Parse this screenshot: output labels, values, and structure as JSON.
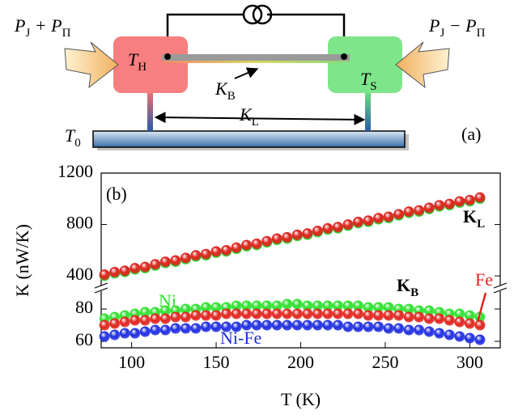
{
  "diagram": {
    "left_power": [
      {
        "text": "P",
        "sub": "J"
      },
      {
        "text": " + P",
        "sub": "Π"
      }
    ],
    "right_power": [
      {
        "text": "P",
        "sub": "J"
      },
      {
        "text": " − P",
        "sub": "Π"
      }
    ],
    "hot": [
      {
        "text": "T",
        "sub": "H"
      }
    ],
    "sample": [
      {
        "text": "T",
        "sub": "S"
      }
    ],
    "bridge": [
      {
        "text": "K",
        "sub": "B"
      }
    ],
    "leg": [
      {
        "text": "K",
        "sub": "L"
      }
    ],
    "bath": [
      {
        "text": "T",
        "sub": "0"
      }
    ],
    "panel_label": "(a)"
  },
  "chart_data": [
    {
      "type": "scatter",
      "panel_label": "(b)",
      "annotation": [
        {
          "text": "K",
          "sub": "L"
        }
      ],
      "xlim": [
        82,
        318
      ],
      "ylim": [
        325,
        1200
      ],
      "yticks": [
        400,
        800,
        1200
      ],
      "x": [
        84,
        90,
        96,
        102,
        108,
        114,
        120,
        126,
        132,
        138,
        144,
        150,
        156,
        162,
        168,
        174,
        180,
        186,
        192,
        198,
        204,
        210,
        216,
        222,
        228,
        234,
        240,
        246,
        252,
        258,
        264,
        270,
        276,
        282,
        288,
        294,
        300,
        306
      ],
      "series": [
        {
          "color": "#1f2ee0",
          "values": [
            405,
            425,
            435,
            455,
            465,
            485,
            505,
            515,
            535,
            555,
            565,
            585,
            595,
            615,
            635,
            645,
            665,
            685,
            695,
            715,
            725,
            745,
            765,
            775,
            795,
            815,
            825,
            845,
            855,
            875,
            895,
            905,
            925,
            945,
            955,
            975,
            985,
            1005
          ]
        },
        {
          "color": "#2ee02e",
          "values": [
            400,
            420,
            430,
            450,
            460,
            480,
            500,
            510,
            530,
            550,
            560,
            580,
            590,
            610,
            630,
            640,
            660,
            680,
            690,
            710,
            720,
            740,
            760,
            770,
            790,
            810,
            820,
            840,
            850,
            870,
            890,
            900,
            920,
            940,
            950,
            970,
            980,
            1000
          ]
        },
        {
          "color": "#e0241e",
          "values": [
            410,
            430,
            440,
            460,
            470,
            490,
            510,
            520,
            540,
            560,
            570,
            590,
            600,
            620,
            640,
            650,
            670,
            690,
            700,
            720,
            730,
            750,
            770,
            780,
            800,
            820,
            830,
            850,
            860,
            880,
            900,
            910,
            930,
            950,
            960,
            980,
            990,
            1010
          ]
        }
      ]
    },
    {
      "type": "scatter",
      "xlabel": "T (K)",
      "ylabel": "K (nW/K)",
      "annotation": [
        {
          "text": "K",
          "sub": "B"
        }
      ],
      "xlim": [
        82,
        318
      ],
      "ylim": [
        56,
        91
      ],
      "yticks": [
        60,
        80
      ],
      "xticks": [
        100,
        150,
        200,
        250,
        300
      ],
      "x": [
        84,
        90,
        96,
        102,
        108,
        114,
        120,
        126,
        132,
        138,
        144,
        150,
        156,
        162,
        168,
        174,
        180,
        186,
        192,
        198,
        204,
        210,
        216,
        222,
        228,
        234,
        240,
        246,
        252,
        258,
        264,
        270,
        276,
        282,
        288,
        294,
        300,
        306
      ],
      "series": [
        {
          "name": "Ni-Fe",
          "color": "#1f2ee0",
          "values": [
            63,
            64,
            65,
            65,
            66,
            67,
            67,
            68,
            68,
            68,
            69,
            69,
            69,
            69,
            70,
            70,
            70,
            70,
            70,
            70,
            70,
            70,
            70,
            70,
            69,
            69,
            69,
            69,
            68,
            68,
            67,
            67,
            66,
            65,
            64,
            63,
            62,
            61
          ]
        },
        {
          "name": "Ni",
          "color": "#2ee02e",
          "values": [
            74,
            75,
            76,
            77,
            78,
            78,
            79,
            79,
            80,
            80,
            81,
            81,
            81,
            82,
            82,
            82,
            82,
            82,
            83,
            83,
            82,
            82,
            82,
            82,
            82,
            82,
            81,
            81,
            81,
            80,
            80,
            79,
            79,
            78,
            77,
            77,
            76,
            75
          ]
        },
        {
          "name": "Fe",
          "color": "#e0241e",
          "values": [
            70,
            71,
            72,
            73,
            73,
            74,
            74,
            75,
            75,
            76,
            76,
            76,
            77,
            77,
            77,
            77,
            77,
            77,
            77,
            77,
            77,
            77,
            77,
            77,
            77,
            77,
            76,
            76,
            76,
            76,
            75,
            75,
            74,
            74,
            73,
            72,
            71,
            70
          ]
        }
      ]
    }
  ]
}
